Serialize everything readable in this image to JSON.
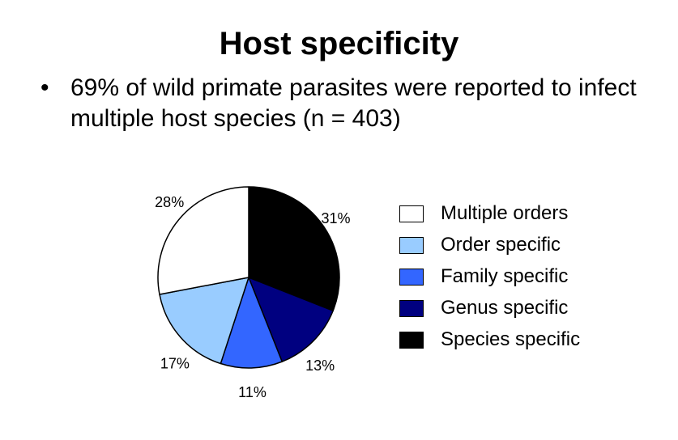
{
  "slide": {
    "title": "Host specificity",
    "bullet": "69% of wild primate parasites were reported to infect multiple host species (n = 403)"
  },
  "chart_data": {
    "type": "pie",
    "title": "",
    "slices": [
      {
        "label": "Species specific",
        "value": 31,
        "display": "31%",
        "color": "#000000"
      },
      {
        "label": "Genus specific",
        "value": 13,
        "display": "13%",
        "color": "#000080"
      },
      {
        "label": "Family specific",
        "value": 11,
        "display": "11%",
        "color": "#3366ff"
      },
      {
        "label": "Order specific",
        "value": 17,
        "display": "17%",
        "color": "#99ccff"
      },
      {
        "label": "Multiple orders",
        "value": 28,
        "display": "28%",
        "color": "#ffffff"
      }
    ],
    "legend_order": [
      "Multiple orders",
      "Order specific",
      "Family specific",
      "Genus specific",
      "Species specific"
    ],
    "legend_position": "right",
    "start": "12 o'clock",
    "direction": "clockwise"
  }
}
